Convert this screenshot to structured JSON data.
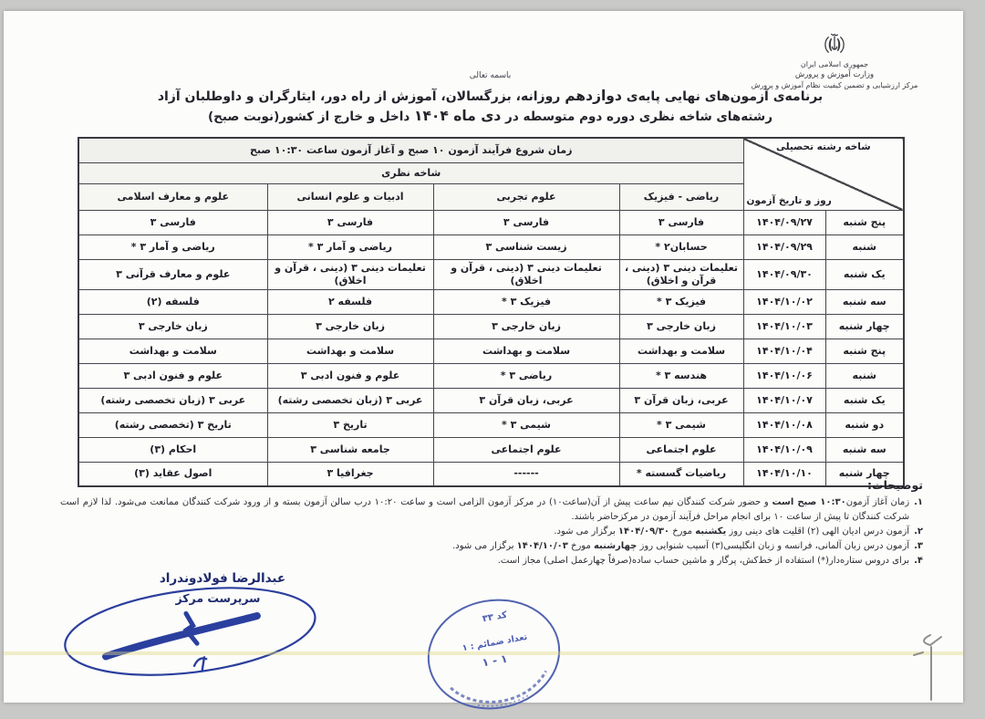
{
  "document": {
    "bismillah": "باسمه تعالی",
    "org": {
      "emblem_icon": "iran-national-emblem",
      "lines": [
        "جمهوری اسلامی ایران",
        "وزارت آموزش و پرورش",
        "مرکز ارزشیابی و تضمین کیفیت نظام آموزش و پرورش"
      ]
    },
    "title": {
      "line1": [
        {
          "t": "برنامه‌ی آزمون‌های نهایی پایه‌ی ",
          "b": false
        },
        {
          "t": "دوازدهم",
          "b": true
        },
        {
          "t": " روزانه، بزرگسالان، آموزش از راه دور، ایثارگران و داوطلبان آزاد",
          "b": false
        }
      ],
      "line2": [
        {
          "t": "رشته‌های شاخه نظری دوره دوم متوسطه در ",
          "b": false
        },
        {
          "t": "دی ماه ۱۴۰۴",
          "b": true
        },
        {
          "t": " داخل و خارج از کشور(نوبت صبح)",
          "b": false
        }
      ]
    }
  },
  "table": {
    "corner": {
      "top": "شاخه رشته تحصیلی",
      "bottom": "روز و تاریخ آزمون"
    },
    "time_header": [
      {
        "t": "زمان شروع فرآیند آزمون ",
        "b": false
      },
      {
        "t": "۱۰ صبح",
        "b": true
      },
      {
        "t": " و آغاز آزمون ساعت ",
        "b": false
      },
      {
        "t": "۱۰:۳۰ صبح",
        "b": true
      }
    ],
    "branch_header": "شاخه نظری",
    "columns": [
      "ریاضی - فیزیک",
      "علوم تجربی",
      "ادبیات و علوم انسانی",
      "علوم و معارف اسلامی"
    ],
    "rows": [
      {
        "day": "پنج شنبه",
        "date": "۱۴۰۴/۰۹/۲۷",
        "cells": [
          "فارسی ۳",
          "فارسی ۳",
          "فارسی ۳",
          "فارسی ۳"
        ]
      },
      {
        "day": "شنبه",
        "date": "۱۴۰۴/۰۹/۲۹",
        "cells": [
          "حسابان۲ *",
          "زیست شناسی ۳",
          "ریاضی و آمار ۳ *",
          "ریاضی و آمار ۳ *"
        ]
      },
      {
        "day": "یک شنبه",
        "date": "۱۴۰۴/۰۹/۳۰",
        "cells": [
          "تعلیمات دینی ۳ (دینی ، قرآن و اخلاق)",
          "تعلیمات دینی ۳ (دینی ، قرآن و اخلاق)",
          "تعلیمات دینی ۳ (دینی ، قرآن و اخلاق)",
          "علوم و معارف قرآنی ۳"
        ]
      },
      {
        "day": "سه شنبه",
        "date": "۱۴۰۴/۱۰/۰۲",
        "cells": [
          "فیزیک ۳ *",
          "فیزیک ۳ *",
          "فلسفه ۲",
          "فلسفه (۲)"
        ]
      },
      {
        "day": "چهار شنبه",
        "date": "۱۴۰۴/۱۰/۰۳",
        "cells": [
          "زبان خارجی ۳",
          "زبان خارجی ۳",
          "زبان خارجی ۳",
          "زبان خارجی ۳"
        ]
      },
      {
        "day": "پنج شنبه",
        "date": "۱۴۰۴/۱۰/۰۴",
        "cells": [
          "سلامت و بهداشت",
          "سلامت و بهداشت",
          "سلامت و بهداشت",
          "سلامت و بهداشت"
        ]
      },
      {
        "day": "شنبه",
        "date": "۱۴۰۴/۱۰/۰۶",
        "cells": [
          "هندسه ۳ *",
          "ریاضی ۳ *",
          "علوم و فنون ادبی ۳",
          "علوم و فنون ادبی ۳"
        ]
      },
      {
        "day": "یک شنبه",
        "date": "۱۴۰۴/۱۰/۰۷",
        "cells": [
          "عربی، زبان قرآن ۳",
          "عربی، زبان قرآن ۳",
          "عربی ۳ (زبان تخصصی رشته)",
          "عربی ۳ (زبان تخصصی رشته)"
        ]
      },
      {
        "day": "دو شنبه",
        "date": "۱۴۰۴/۱۰/۰۸",
        "cells": [
          "شیمی ۳ *",
          "شیمی ۳ *",
          "تاریخ ۳",
          "تاریخ ۳ (تخصصی رشته)"
        ]
      },
      {
        "day": "سه شنبه",
        "date": "۱۴۰۴/۱۰/۰۹",
        "cells": [
          "علوم اجتماعی",
          "علوم اجتماعی",
          "جامعه شناسی ۳",
          "احکام (۳)"
        ]
      },
      {
        "day": "چهار شنبه",
        "date": "۱۴۰۴/۱۰/۱۰",
        "cells": [
          "ریاضیات گسسته *",
          "------",
          "جغرافیا ۳",
          "اصول عقاید (۳)"
        ]
      }
    ]
  },
  "notes": {
    "heading": "توضیحات:",
    "items": [
      {
        "num": "۱.",
        "segments": [
          {
            "t": "زمان آغاز آزمون",
            "b": false
          },
          {
            "t": "۱۰:۳۰ صبح است",
            "b": true
          },
          {
            "t": " و حضور شرکت کنندگان نیم ساعت پیش از آن(ساعت۱۰) در مرکز آزمون الزامی است و ساعت ۱۰:۲۰ درب سالن آزمون بسته و از ورود شرکت کنندگان ممانعت می‌شود. لذا لازم است شرکت کنندگان تا پیش از ساعت ۱۰ برای انجام مراحل فرآیند آزمون در مرکزحاضر باشند.",
            "b": false
          }
        ]
      },
      {
        "num": "۲.",
        "segments": [
          {
            "t": "آزمون درس ادیان الهی (۲) اقلیت های دینی روز ",
            "b": false
          },
          {
            "t": "یکشنبه",
            "b": true
          },
          {
            "t": " مورخ ",
            "b": false
          },
          {
            "t": "۱۴۰۴/۰۹/۳۰",
            "b": true
          },
          {
            "t": " برگزار می شود.",
            "b": false
          }
        ]
      },
      {
        "num": "۳.",
        "segments": [
          {
            "t": "آزمون درس زبان آلمانی، فرانسه و زبان انگلیسی(۳) آسیب شنوایی روز ",
            "b": false
          },
          {
            "t": "چهارشنبه",
            "b": true
          },
          {
            "t": " مورخ ",
            "b": false
          },
          {
            "t": "۱۴۰۴/۱۰/۰۳",
            "b": true
          },
          {
            "t": " برگزار می شود.",
            "b": false
          }
        ]
      },
      {
        "num": "۴.",
        "segments": [
          {
            "t": "برای دروس ستاره‌دار(*) استفاده از خط‌کش، پرگار و ماشین حساب ساده(صرفاً چهارعمل اصلی) مجاز است.",
            "b": false
          }
        ]
      }
    ]
  },
  "signature": {
    "name": "عبدالرضا فولادوندراد",
    "role": "سرپرست مرکز"
  },
  "stamp": {
    "code": "کد ۳۳",
    "attachments": "تعداد ضمائم : ۱",
    "numbers": "۱ - ۱"
  },
  "colors": {
    "ink": "#23232b",
    "signature_blue": "#2b3f9e",
    "stamp_blue": "#4c5db2",
    "paper": "#fcfcfa",
    "scan_background": "#c9c9c7",
    "highlight_yellow": "#e1d882"
  }
}
